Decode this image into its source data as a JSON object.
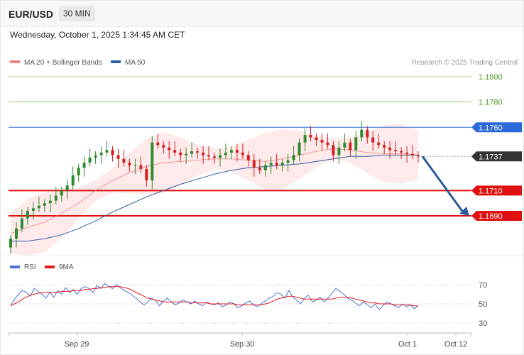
{
  "header": {
    "symbol": "EUR/USD",
    "timeframe": "30 MIN"
  },
  "datetime": "Wednesday, October 1, 2025 1:34:45 AM CET",
  "legend": [
    {
      "label": "MA 20 + Bollinger Bands",
      "color": "#f08080"
    },
    {
      "label": "MA 50",
      "color": "#2e5fa0"
    }
  ],
  "credit": "Research © 2025 Trading Central",
  "colors": {
    "up": "#2e8b2e",
    "down": "#d81e1e",
    "blue_level": "#2a6ad8",
    "red_level": "#e01010",
    "green_grid": "#9bc97a",
    "last_price": "#333333",
    "arrow": "#2b5a9e",
    "ma20": "#f08080",
    "ma50": "#2e5fa0",
    "band_fill": "#fde3e3"
  },
  "chart_data": [
    {
      "type": "candlestick",
      "yaxis_labels": [
        "1.1800",
        "1.1780",
        "1.1760",
        "1.1737",
        "1.1710",
        "1.1690"
      ],
      "ylim": [
        1.1667,
        1.1805
      ],
      "levels": [
        {
          "value": 1.18,
          "label": "1.1800",
          "kind": "green"
        },
        {
          "value": 1.178,
          "label": "1.1780",
          "kind": "green"
        },
        {
          "value": 1.176,
          "label": "1.1760",
          "kind": "resistance"
        },
        {
          "value": 1.1737,
          "label": "1.1737",
          "kind": "last"
        },
        {
          "value": 1.171,
          "label": "1.1710",
          "kind": "support"
        },
        {
          "value": 1.169,
          "label": "1.1690",
          "kind": "support"
        }
      ],
      "last_price": 1.1737,
      "forecast": {
        "from": 1.1737,
        "to": 1.169
      },
      "x_labels": [
        "Sep 29",
        "Sep 30",
        "Oct 1",
        "Oct 12"
      ],
      "series": [
        {
          "name": "MA 20 + Bollinger Bands",
          "values": [
            1.1676,
            1.1681,
            1.1685,
            1.1692,
            1.17,
            1.171,
            1.1718,
            1.1724,
            1.1729,
            1.1732,
            1.1733,
            1.1734,
            1.1735,
            1.1735,
            1.1734,
            1.1733,
            1.1735,
            1.1738,
            1.1741,
            1.1743,
            1.1742,
            1.174,
            1.1739,
            1.1739,
            1.1738
          ]
        },
        {
          "name": "MA 50",
          "values": [
            1.167,
            1.167,
            1.1672,
            1.1675,
            1.168,
            1.1686,
            1.1693,
            1.1699,
            1.1705,
            1.171,
            1.1715,
            1.1719,
            1.1723,
            1.1726,
            1.1728,
            1.1729,
            1.173,
            1.1731,
            1.1733,
            1.1735,
            1.1737,
            1.1737,
            1.1738,
            1.1738,
            1.1738
          ]
        },
        {
          "name": "candles_close",
          "values": [
            1.1672,
            1.168,
            1.1688,
            1.1694,
            1.1696,
            1.1698,
            1.17,
            1.1702,
            1.1706,
            1.171,
            1.1714,
            1.1722,
            1.1728,
            1.1732,
            1.1736,
            1.1738,
            1.174,
            1.1742,
            1.1738,
            1.1735,
            1.1732,
            1.173,
            1.173,
            1.1727,
            1.1718,
            1.1748,
            1.1746,
            1.1744,
            1.1742,
            1.174,
            1.1738,
            1.1739,
            1.1741,
            1.174,
            1.1738,
            1.1737,
            1.1736,
            1.1738,
            1.174,
            1.1742,
            1.174,
            1.1738,
            1.1734,
            1.1728,
            1.1726,
            1.173,
            1.1732,
            1.173,
            1.1732,
            1.1734,
            1.1738,
            1.1748,
            1.1754,
            1.1752,
            1.175,
            1.1748,
            1.1746,
            1.1738,
            1.1744,
            1.1748,
            1.1742,
            1.1752,
            1.1758,
            1.1752,
            1.1748,
            1.1746,
            1.1744,
            1.1742,
            1.1741,
            1.174,
            1.1739,
            1.1738,
            1.1737
          ]
        }
      ]
    },
    {
      "type": "line",
      "ylim": [
        20,
        80
      ],
      "ticks": [
        70,
        50,
        30
      ],
      "series": [
        {
          "name": "RSI",
          "color": "#4a72d6",
          "values": [
            48,
            55,
            60,
            64,
            62,
            58,
            66,
            63,
            60,
            56,
            62,
            57,
            64,
            60,
            67,
            62,
            65,
            60,
            66,
            68,
            66,
            62,
            69,
            66,
            71,
            68,
            66,
            70,
            67,
            64,
            62,
            59,
            56,
            52,
            49,
            52,
            56,
            53,
            48,
            53,
            56,
            52,
            49,
            51,
            54,
            52,
            50,
            53,
            50,
            48,
            52,
            50,
            49,
            51,
            47,
            49,
            52,
            50,
            46,
            48,
            51,
            53,
            49,
            47,
            50,
            53,
            56,
            58,
            62,
            60,
            56,
            64,
            57,
            54,
            50,
            56,
            59,
            52,
            54,
            57,
            52,
            56,
            61,
            66,
            63,
            60,
            56,
            54,
            51,
            48,
            52,
            49,
            46,
            50,
            44,
            48,
            52,
            50,
            48,
            46,
            50,
            47,
            49,
            45,
            48
          ]
        },
        {
          "name": "9MA",
          "color": "#e21a1a",
          "values": [
            48,
            50,
            52,
            55,
            57,
            59,
            60,
            61,
            62,
            62,
            62,
            62,
            62,
            63,
            63,
            63,
            64,
            64,
            64,
            65,
            65,
            66,
            66,
            67,
            67,
            68,
            68,
            68,
            68,
            67,
            66,
            64,
            62,
            60,
            58,
            56,
            55,
            54,
            53,
            52,
            52,
            52,
            52,
            52,
            52,
            52,
            51,
            51,
            51,
            51,
            51,
            50,
            50,
            50,
            50,
            50,
            50,
            50,
            49,
            49,
            49,
            49,
            49,
            49,
            49,
            50,
            51,
            53,
            55,
            56,
            57,
            58,
            58,
            57,
            56,
            55,
            55,
            55,
            55,
            55,
            55,
            55,
            55,
            56,
            57,
            57,
            57,
            56,
            55,
            54,
            53,
            52,
            51,
            51,
            50,
            50,
            50,
            50,
            49,
            49,
            49,
            49,
            49,
            48,
            48
          ]
        }
      ]
    }
  ],
  "rsi_legend": [
    {
      "label": "RSI",
      "color": "#4a72d6"
    },
    {
      "label": "9MA",
      "color": "#e21a1a"
    }
  ]
}
